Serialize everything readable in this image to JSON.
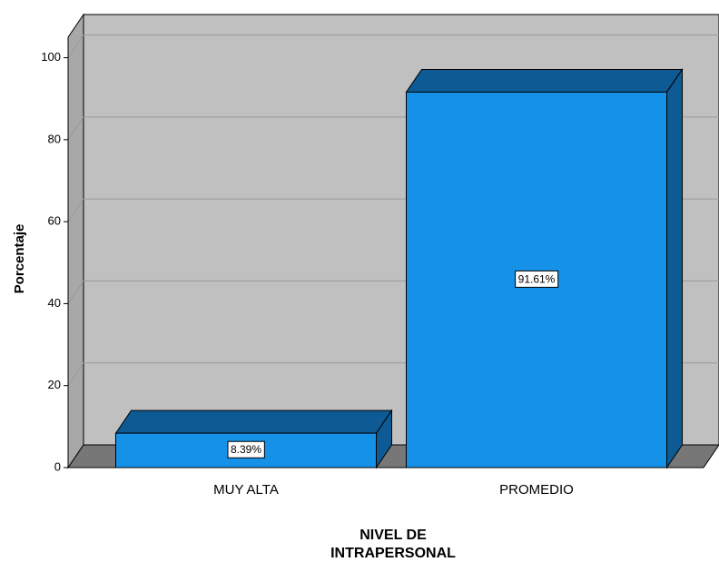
{
  "chart_data": {
    "type": "bar",
    "categories": [
      "MUY ALTA",
      "PROMEDIO"
    ],
    "values": [
      8.39,
      91.61
    ],
    "value_labels": [
      "8.39%",
      "91.61%"
    ],
    "color": "#1591e8",
    "y_label": "Porcentaje",
    "x_label": [
      "NIVEL DE",
      "INTRAPERSONAL"
    ],
    "ylim": [
      0,
      105
    ],
    "yticks": [
      0,
      20,
      40,
      60,
      80,
      100
    ],
    "grid": true
  }
}
